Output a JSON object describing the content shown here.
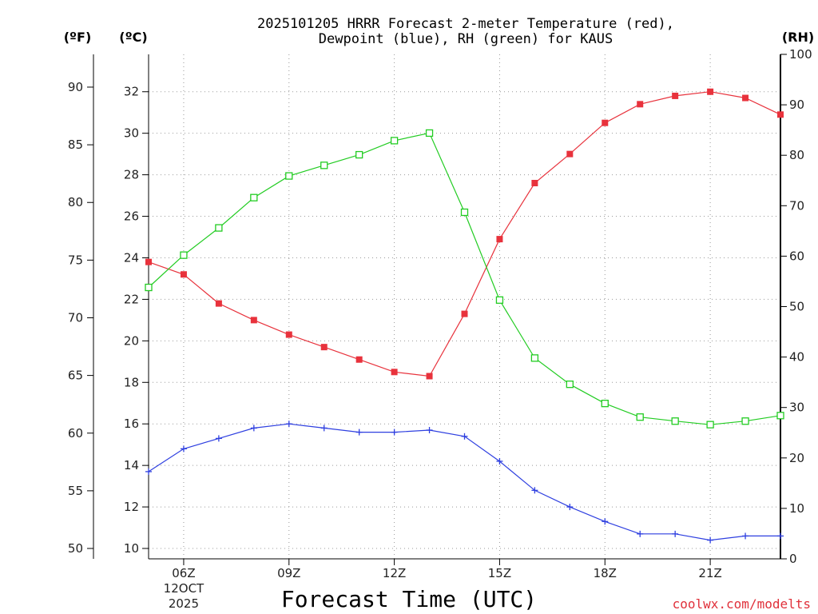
{
  "colors": {
    "temperature": "#e8323c",
    "dewpoint": "#2e3fe0",
    "rh": "#22cc22",
    "credit": "#e0303a"
  },
  "chart_data": {
    "type": "line",
    "title_line1": "2025101205 HRRR Forecast 2-meter Temperature (red),",
    "title_line2": "Dewpoint (blue), RH (green) for KAUS",
    "xlabel": "Forecast Time (UTC)",
    "credit": "coolwx.com/modelts",
    "left_unit_f": "(ºF)",
    "left_unit_c": "(ºC)",
    "right_unit": "(RH)",
    "x_hours": [
      5,
      6,
      7,
      8,
      9,
      10,
      11,
      12,
      13,
      14,
      15,
      16,
      17,
      18,
      19,
      20,
      21,
      22,
      23
    ],
    "x_range": [
      5,
      23
    ],
    "x_ticks": [
      {
        "hour": 6,
        "label": "06Z",
        "sub1": "12OCT",
        "sub2": "2025"
      },
      {
        "hour": 9,
        "label": "09Z"
      },
      {
        "hour": 12,
        "label": "12Z"
      },
      {
        "hour": 15,
        "label": "15Z"
      },
      {
        "hour": 18,
        "label": "18Z"
      },
      {
        "hour": 21,
        "label": "21Z"
      }
    ],
    "celsius_range": [
      9.5,
      33.8
    ],
    "celsius_ticks": [
      "10",
      "12",
      "14",
      "16",
      "18",
      "20",
      "22",
      "24",
      "26",
      "28",
      "30",
      "32"
    ],
    "fahrenheit_ticks": [
      "50",
      "55",
      "60",
      "65",
      "70",
      "75",
      "80",
      "85",
      "90"
    ],
    "rh_range": [
      0,
      100
    ],
    "rh_ticks": [
      "0",
      "10",
      "20",
      "30",
      "40",
      "50",
      "60",
      "70",
      "80",
      "90",
      "100"
    ],
    "series": [
      {
        "name": "Temperature",
        "axis": "celsius",
        "marker": "filled-square",
        "values": [
          23.8,
          23.2,
          21.8,
          21.0,
          20.3,
          19.7,
          19.1,
          18.5,
          18.3,
          21.3,
          24.9,
          27.6,
          29.0,
          30.5,
          31.4,
          31.8,
          32.0,
          31.7,
          30.9
        ]
      },
      {
        "name": "Dewpoint",
        "axis": "celsius",
        "marker": "plus",
        "values": [
          13.7,
          14.8,
          15.3,
          15.8,
          16.0,
          15.8,
          15.6,
          15.6,
          15.7,
          15.4,
          14.2,
          12.8,
          12.0,
          11.3,
          10.7,
          10.7,
          10.4,
          10.6,
          10.6
        ]
      },
      {
        "name": "RH",
        "axis": "rh",
        "marker": "open-square",
        "values": [
          53.8,
          60.2,
          65.6,
          71.6,
          75.9,
          78.0,
          80.1,
          82.9,
          84.4,
          68.7,
          51.3,
          39.8,
          34.6,
          30.8,
          28.1,
          27.3,
          26.6,
          27.3,
          28.4
        ]
      }
    ]
  }
}
